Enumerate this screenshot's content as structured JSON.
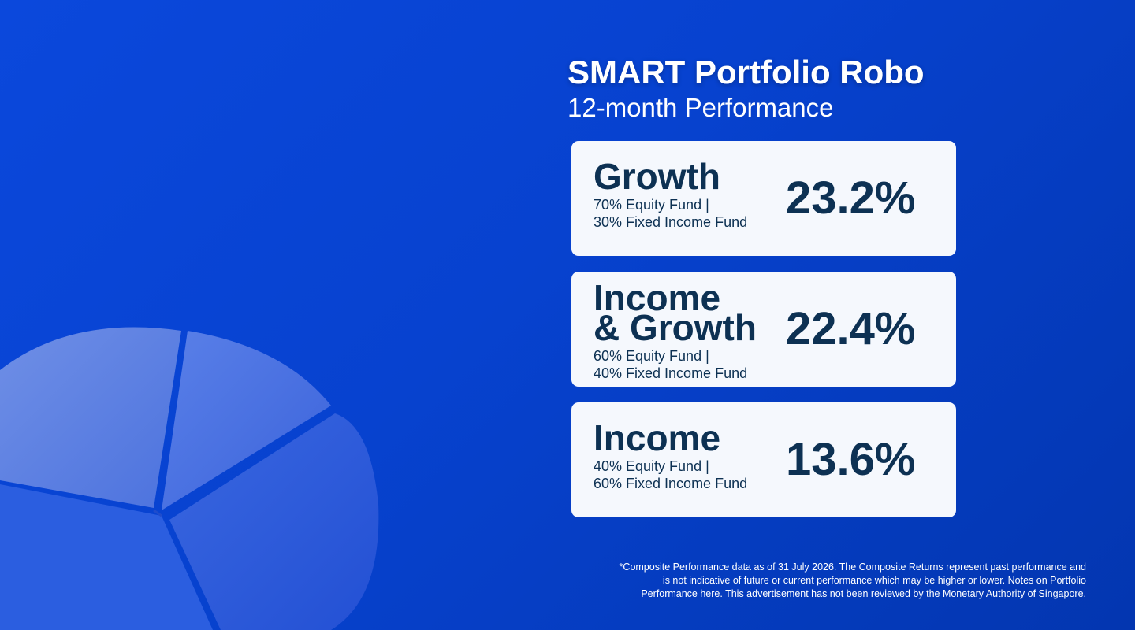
{
  "header": {
    "title": "SMART Portfolio Robo",
    "subtitle": "12-month Performance"
  },
  "cards": [
    {
      "name_lines": [
        "Growth"
      ],
      "allocation_lines": [
        "70% Equity Fund |",
        "30% Fixed Income Fund"
      ],
      "return": "23.2%"
    },
    {
      "name_lines": [
        "Income",
        "& Growth"
      ],
      "allocation_lines": [
        "60% Equity Fund |",
        "40% Fixed Income Fund"
      ],
      "return": "22.4%"
    },
    {
      "name_lines": [
        "Income"
      ],
      "allocation_lines": [
        "40% Equity Fund |",
        "60% Fixed Income Fund"
      ],
      "return": "13.6%"
    }
  ],
  "footnote_lines": [
    "*Composite Performance data as of 31 July 2026. The Composite Returns represent past performance and",
    "is not indicative of future or current performance which may be higher or lower. Notes on Portfolio",
    "Performance here. This advertisement has not been reviewed by the Monetary Authority of Singapore."
  ]
}
